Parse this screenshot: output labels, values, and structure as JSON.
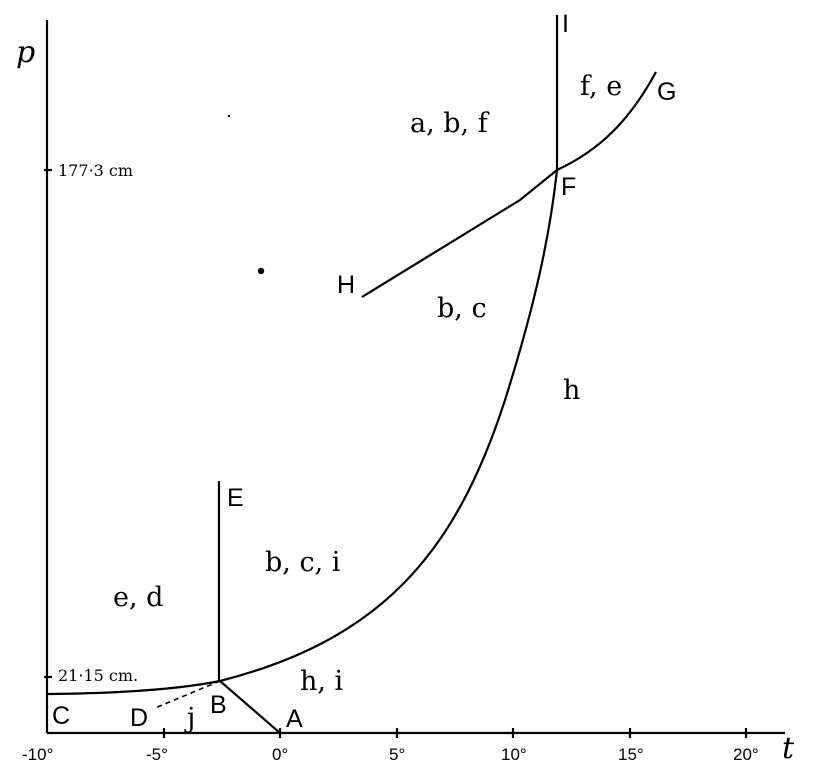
{
  "axes": {
    "x_label": "t",
    "y_label": "p",
    "x_ticks": [
      "-10°",
      "-5°",
      "0°",
      "5°",
      "10°",
      "15°",
      "20°"
    ],
    "y_annotations": [
      "177·3 cm",
      "21·15 cm."
    ]
  },
  "points": {
    "A": "A",
    "B": "B",
    "C": "C",
    "D": "D",
    "E": "E",
    "F": "F",
    "G": "G",
    "H": "H",
    "I": "I"
  },
  "regions": {
    "abf": "a, b, f",
    "fe": "f, e",
    "bc": "b, c",
    "h": "h",
    "bci": "b, c, i",
    "ed": "e, d",
    "hi": "h, i",
    "j": "j"
  },
  "colors": {
    "ink": "#000000",
    "paper": "#ffffff"
  }
}
